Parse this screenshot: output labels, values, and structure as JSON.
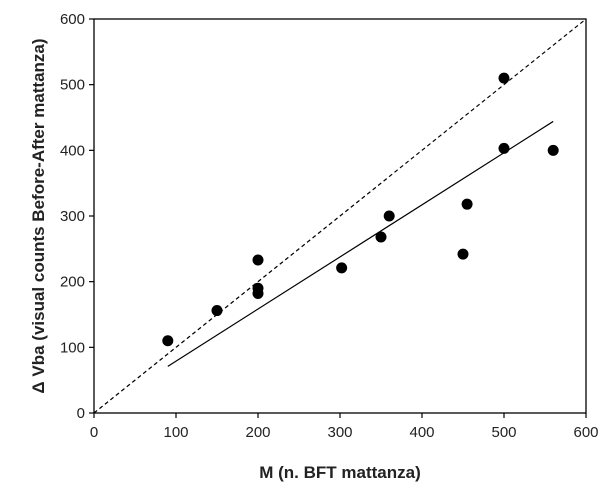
{
  "chart_data": {
    "type": "scatter",
    "title": "",
    "xlabel": "M (n. BFT mattanza)",
    "ylabel": "Δ Vba (visual counts Before-After mattanza)",
    "xlim": [
      0,
      600
    ],
    "ylim": [
      0,
      600
    ],
    "xticks": [
      0,
      100,
      200,
      300,
      400,
      500,
      600
    ],
    "yticks": [
      0,
      100,
      200,
      300,
      400,
      500,
      600
    ],
    "grid": false,
    "legend": "none",
    "points": [
      {
        "x": 90,
        "y": 110
      },
      {
        "x": 150,
        "y": 156
      },
      {
        "x": 200,
        "y": 233
      },
      {
        "x": 200,
        "y": 190
      },
      {
        "x": 200,
        "y": 182
      },
      {
        "x": 302,
        "y": 221
      },
      {
        "x": 350,
        "y": 268
      },
      {
        "x": 360,
        "y": 300
      },
      {
        "x": 450,
        "y": 242
      },
      {
        "x": 455,
        "y": 318
      },
      {
        "x": 500,
        "y": 510
      },
      {
        "x": 500,
        "y": 403
      },
      {
        "x": 560,
        "y": 400
      }
    ],
    "regression_line": {
      "x": [
        90,
        560
      ],
      "y": [
        71,
        444
      ],
      "style": "solid"
    },
    "identity_line": {
      "x": [
        0,
        600
      ],
      "y": [
        0,
        600
      ],
      "style": "dashed"
    },
    "colors": {
      "points": "#000000",
      "lines": "#000000",
      "axes": "#000000"
    }
  }
}
